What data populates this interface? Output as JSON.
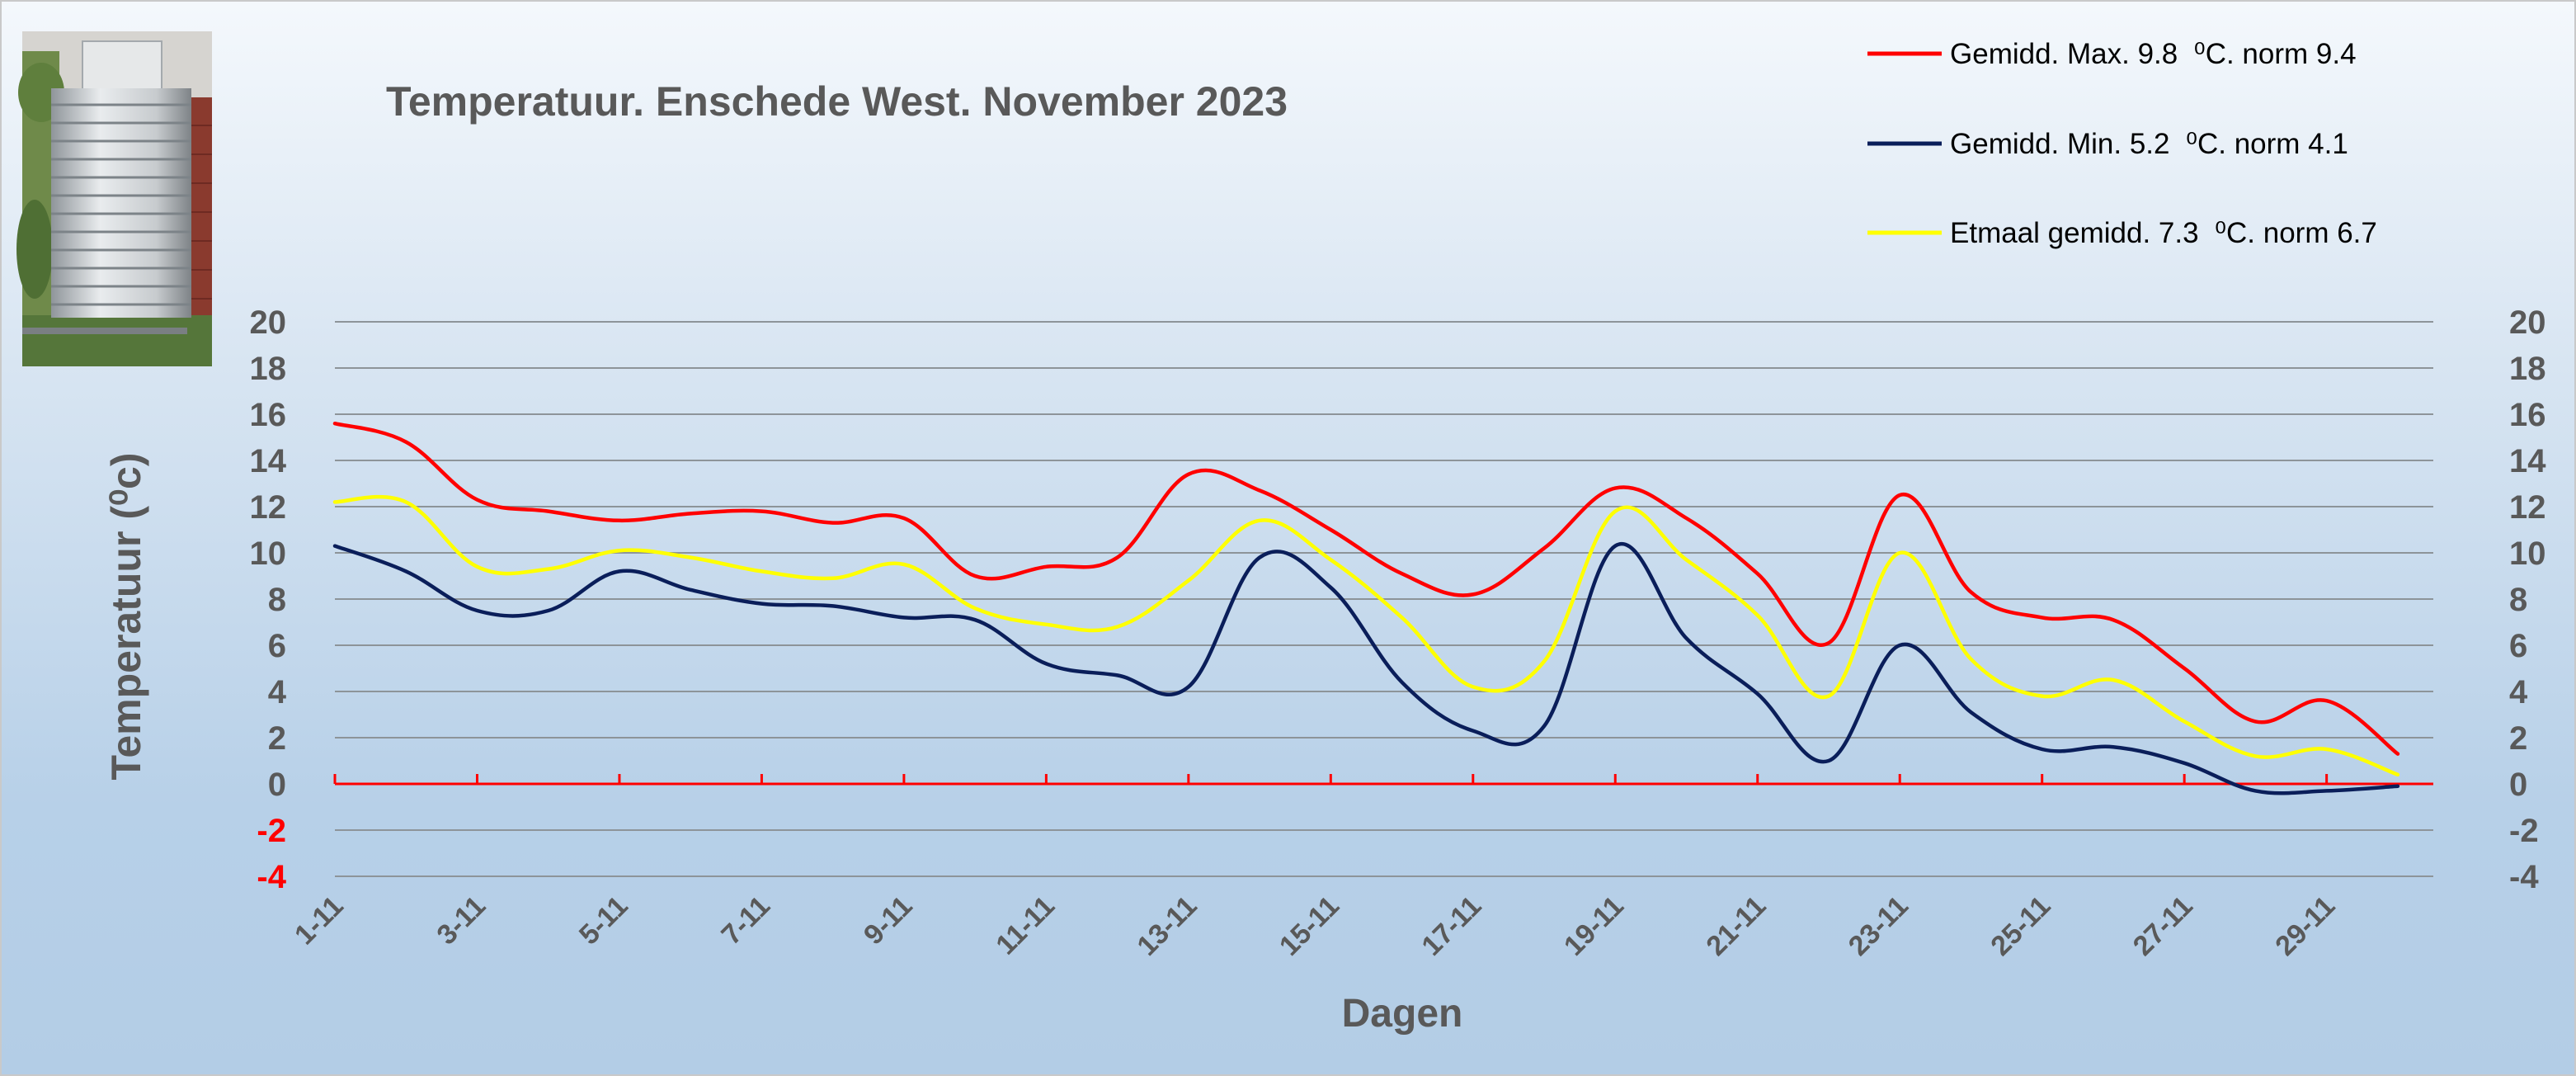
{
  "chart_data": {
    "type": "line",
    "title": "Temperatuur. Enschede West. November 2023",
    "xlabel": "Dagen",
    "ylabel": "Temperatuur (⁰c)",
    "ylim": [
      -4,
      20
    ],
    "yticks": [
      -4,
      -2,
      0,
      2,
      4,
      6,
      8,
      10,
      12,
      14,
      16,
      18,
      20
    ],
    "grid": true,
    "legend_position": "top-right",
    "x_tick_labels": [
      "1-11",
      "3-11",
      "5-11",
      "7-11",
      "9-11",
      "11-11",
      "13-11",
      "15-11",
      "17-11",
      "19-11",
      "21-11",
      "23-11",
      "25-11",
      "27-11",
      "29-11"
    ],
    "x": [
      "1-11",
      "2-11",
      "3-11",
      "4-11",
      "5-11",
      "6-11",
      "7-11",
      "8-11",
      "9-11",
      "10-11",
      "11-11",
      "12-11",
      "13-11",
      "14-11",
      "15-11",
      "16-11",
      "17-11",
      "18-11",
      "19-11",
      "20-11",
      "21-11",
      "22-11",
      "23-11",
      "24-11",
      "25-11",
      "26-11",
      "27-11",
      "28-11",
      "29-11",
      "30-11"
    ],
    "series": [
      {
        "name": "Gemidd. Max. 9.8  ⁰C. norm 9.4",
        "color": "#ff0000",
        "values": [
          15.6,
          14.8,
          12.3,
          11.8,
          11.4,
          11.7,
          11.8,
          11.3,
          11.5,
          9.0,
          9.4,
          9.8,
          13.4,
          12.7,
          11.0,
          9.1,
          8.2,
          10.2,
          12.8,
          11.5,
          9.1,
          6.1,
          12.5,
          8.3,
          7.2,
          7.1,
          5.0,
          2.7,
          3.6,
          1.3
        ]
      },
      {
        "name": "Gemidd. Min. 5.2  ⁰C. norm 4.1",
        "color": "#0a1e5a",
        "values": [
          10.3,
          9.2,
          7.5,
          7.5,
          9.2,
          8.4,
          7.8,
          7.7,
          7.2,
          7.1,
          5.2,
          4.7,
          4.2,
          9.8,
          8.5,
          4.4,
          2.3,
          2.5,
          10.3,
          6.3,
          3.9,
          1.0,
          6.0,
          3.1,
          1.5,
          1.6,
          0.9,
          -0.3,
          -0.3,
          -0.1
        ]
      },
      {
        "name": "Etmaal gemidd. 7.3  ⁰C. norm 6.7",
        "color": "#ffff00",
        "values": [
          12.2,
          12.2,
          9.4,
          9.3,
          10.1,
          9.8,
          9.2,
          8.9,
          9.5,
          7.6,
          6.9,
          6.8,
          8.8,
          11.4,
          9.7,
          7.2,
          4.2,
          5.3,
          11.8,
          9.7,
          7.3,
          3.8,
          10.0,
          5.4,
          3.8,
          4.5,
          2.7,
          1.2,
          1.5,
          0.4
        ]
      }
    ]
  }
}
